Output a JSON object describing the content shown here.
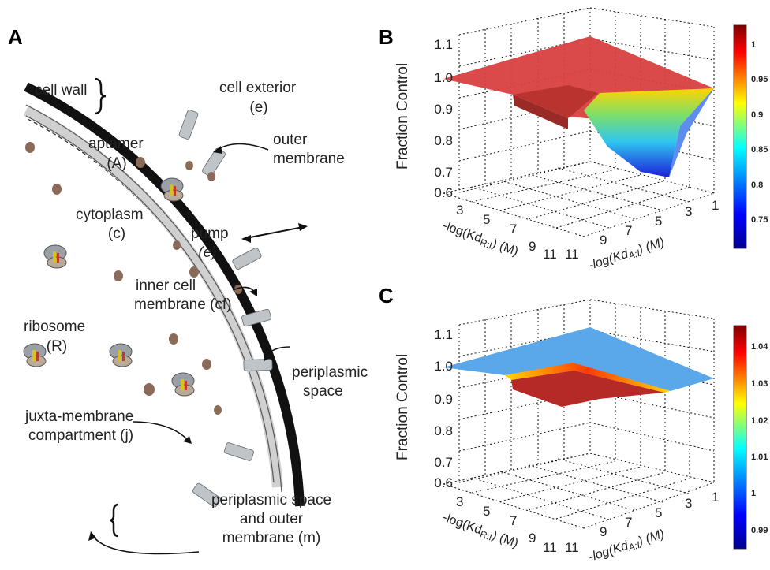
{
  "panelA": {
    "letter": "A",
    "labels": {
      "cell_wall": "cell wall",
      "cell_exterior_1": "cell exterior",
      "cell_exterior_2": "(e)",
      "aptamer_1": "aptamer",
      "aptamer_2": "(A)",
      "outer_membrane_1": "outer",
      "outer_membrane_2": "membrane",
      "cytoplasm_1": "cytoplasm",
      "cytoplasm_2": "(c)",
      "pump_1": "pump",
      "pump_2": "(e)",
      "inner_1": "inner cell",
      "inner_2": "membrane (cf)",
      "ribosome_1": "ribosome",
      "ribosome_2": "(R)",
      "periplasmic_1": "periplasmic",
      "periplasmic_2": "space",
      "juxta_1": "juxta-membrane",
      "juxta_2": "compartment (j)",
      "ps_om_1": "periplasmic space",
      "ps_om_2": "and outer",
      "ps_om_3": "membrane (m)"
    }
  },
  "panelB": {
    "letter": "B",
    "zlabel": "Fraction Control",
    "xlabel_prefix": "-log(Kd",
    "xlabel_sub": "R:I",
    "xlabel_suffix": ") (M)",
    "ylabel_prefix": "-log(Kd",
    "ylabel_sub": "A:I",
    "ylabel_suffix": ") (M)",
    "z_ticks": [
      "1.1",
      "1.0",
      "0.9",
      "0.8",
      "0.7",
      "0.6"
    ],
    "x_ticks": [
      "3",
      "5",
      "7",
      "9",
      "11"
    ],
    "y_ticks": [
      "11",
      "9",
      "7",
      "5",
      "3",
      "1"
    ],
    "colorbar_ticks": [
      "1",
      "0.95",
      "0.9",
      "0.85",
      "0.8",
      "0.75"
    ]
  },
  "panelC": {
    "letter": "C",
    "zlabel": "Fraction Control",
    "xlabel_prefix": "-log(Kd",
    "xlabel_sub": "R:I",
    "xlabel_suffix": ") (M)",
    "ylabel_prefix": "-log(Kd",
    "ylabel_sub": "A:I",
    "ylabel_suffix": ") (M)",
    "z_ticks": [
      "1.1",
      "1.0",
      "0.9",
      "0.8",
      "0.7",
      "0.6"
    ],
    "x_ticks": [
      "3",
      "5",
      "7",
      "9",
      "11"
    ],
    "y_ticks": [
      "11",
      "9",
      "7",
      "5",
      "3",
      "1"
    ],
    "colorbar_ticks": [
      "1.04",
      "1.03",
      "1.02",
      "1.01",
      "1",
      "0.99"
    ]
  },
  "colors": {
    "wall_black": "#111111",
    "membrane_gray": "#c8c8c8",
    "aptamer_brown": "#8a6a58",
    "surface_red": "#c9302c",
    "surface_blue": "#5aa8ea"
  }
}
